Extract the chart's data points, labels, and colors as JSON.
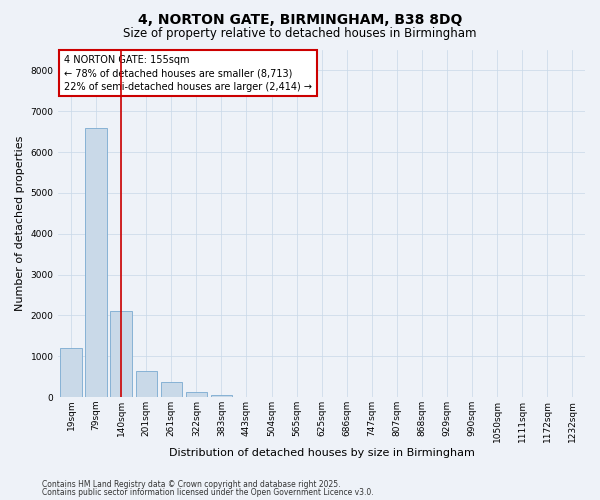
{
  "title_line1": "4, NORTON GATE, BIRMINGHAM, B38 8DQ",
  "title_line2": "Size of property relative to detached houses in Birmingham",
  "xlabel": "Distribution of detached houses by size in Birmingham",
  "ylabel": "Number of detached properties",
  "categories": [
    "19sqm",
    "79sqm",
    "140sqm",
    "201sqm",
    "261sqm",
    "322sqm",
    "383sqm",
    "443sqm",
    "504sqm",
    "565sqm",
    "625sqm",
    "686sqm",
    "747sqm",
    "807sqm",
    "868sqm",
    "929sqm",
    "990sqm",
    "1050sqm",
    "1111sqm",
    "1172sqm",
    "1232sqm"
  ],
  "values": [
    1200,
    6600,
    2100,
    650,
    380,
    120,
    60,
    10,
    0,
    0,
    0,
    0,
    0,
    0,
    0,
    0,
    0,
    0,
    0,
    0,
    0
  ],
  "bar_color": "#c9d9e8",
  "bar_edge_color": "#7aaad0",
  "grid_color": "#c8d8e8",
  "background_color": "#eef2f8",
  "vline_color": "#cc0000",
  "vline_x": 2,
  "annotation_text": "4 NORTON GATE: 155sqm\n← 78% of detached houses are smaller (8,713)\n22% of semi-detached houses are larger (2,414) →",
  "annotation_box_color": "#cc0000",
  "ylim": [
    0,
    8500
  ],
  "yticks": [
    0,
    1000,
    2000,
    3000,
    4000,
    5000,
    6000,
    7000,
    8000
  ],
  "footer_line1": "Contains HM Land Registry data © Crown copyright and database right 2025.",
  "footer_line2": "Contains public sector information licensed under the Open Government Licence v3.0.",
  "title_fontsize": 10,
  "subtitle_fontsize": 8.5,
  "ylabel_fontsize": 8,
  "xlabel_fontsize": 8,
  "tick_fontsize": 6.5,
  "annotation_fontsize": 7,
  "footer_fontsize": 5.5
}
